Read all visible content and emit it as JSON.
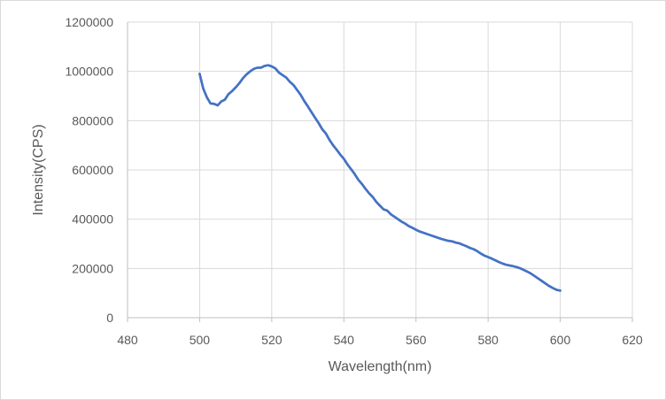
{
  "chart_data": {
    "type": "line",
    "title": "",
    "xlabel": "Wavelength(nm)",
    "ylabel": "Intensity(CPS)",
    "xlim": [
      480,
      620
    ],
    "ylim": [
      0,
      1200000
    ],
    "x_ticks": [
      480,
      500,
      520,
      540,
      560,
      580,
      600,
      620
    ],
    "y_ticks": [
      0,
      200000,
      400000,
      600000,
      800000,
      1000000,
      1200000
    ],
    "grid": true,
    "legend": "none",
    "series": [
      {
        "color": "#4472C4",
        "points": [
          [
            500,
            990000
          ],
          [
            501,
            930000
          ],
          [
            502,
            895000
          ],
          [
            503,
            870000
          ],
          [
            504,
            868000
          ],
          [
            505,
            862000
          ],
          [
            506,
            878000
          ],
          [
            507,
            885000
          ],
          [
            508,
            908000
          ],
          [
            509,
            920000
          ],
          [
            510,
            935000
          ],
          [
            511,
            952000
          ],
          [
            512,
            972000
          ],
          [
            513,
            988000
          ],
          [
            514,
            1000000
          ],
          [
            515,
            1010000
          ],
          [
            516,
            1015000
          ],
          [
            517,
            1015000
          ],
          [
            518,
            1022000
          ],
          [
            519,
            1025000
          ],
          [
            520,
            1020000
          ],
          [
            521,
            1012000
          ],
          [
            522,
            995000
          ],
          [
            523,
            985000
          ],
          [
            524,
            975000
          ],
          [
            525,
            958000
          ],
          [
            526,
            945000
          ],
          [
            527,
            925000
          ],
          [
            528,
            905000
          ],
          [
            529,
            880000
          ],
          [
            530,
            858000
          ],
          [
            531,
            835000
          ],
          [
            532,
            812000
          ],
          [
            533,
            790000
          ],
          [
            534,
            765000
          ],
          [
            535,
            748000
          ],
          [
            536,
            722000
          ],
          [
            537,
            700000
          ],
          [
            538,
            682000
          ],
          [
            539,
            662000
          ],
          [
            540,
            645000
          ],
          [
            541,
            622000
          ],
          [
            542,
            603000
          ],
          [
            543,
            583000
          ],
          [
            544,
            560000
          ],
          [
            545,
            543000
          ],
          [
            546,
            523000
          ],
          [
            547,
            505000
          ],
          [
            548,
            490000
          ],
          [
            549,
            470000
          ],
          [
            550,
            455000
          ],
          [
            551,
            440000
          ],
          [
            552,
            435000
          ],
          [
            553,
            420000
          ],
          [
            554,
            410000
          ],
          [
            555,
            400000
          ],
          [
            556,
            390000
          ],
          [
            557,
            382000
          ],
          [
            558,
            372000
          ],
          [
            559,
            365000
          ],
          [
            560,
            357000
          ],
          [
            561,
            350000
          ],
          [
            562,
            345000
          ],
          [
            563,
            340000
          ],
          [
            564,
            335000
          ],
          [
            565,
            330000
          ],
          [
            566,
            325000
          ],
          [
            567,
            320000
          ],
          [
            568,
            316000
          ],
          [
            569,
            312000
          ],
          [
            570,
            310000
          ],
          [
            571,
            305000
          ],
          [
            572,
            302000
          ],
          [
            573,
            296000
          ],
          [
            574,
            290000
          ],
          [
            575,
            283000
          ],
          [
            576,
            278000
          ],
          [
            577,
            270000
          ],
          [
            578,
            260000
          ],
          [
            579,
            252000
          ],
          [
            580,
            246000
          ],
          [
            581,
            240000
          ],
          [
            582,
            233000
          ],
          [
            583,
            226000
          ],
          [
            584,
            220000
          ],
          [
            585,
            215000
          ],
          [
            586,
            212000
          ],
          [
            587,
            209000
          ],
          [
            588,
            205000
          ],
          [
            589,
            200000
          ],
          [
            590,
            193000
          ],
          [
            591,
            186000
          ],
          [
            592,
            178000
          ],
          [
            593,
            168000
          ],
          [
            594,
            158000
          ],
          [
            595,
            148000
          ],
          [
            596,
            138000
          ],
          [
            597,
            128000
          ],
          [
            598,
            120000
          ],
          [
            599,
            113000
          ],
          [
            600,
            110000
          ]
        ]
      }
    ]
  }
}
